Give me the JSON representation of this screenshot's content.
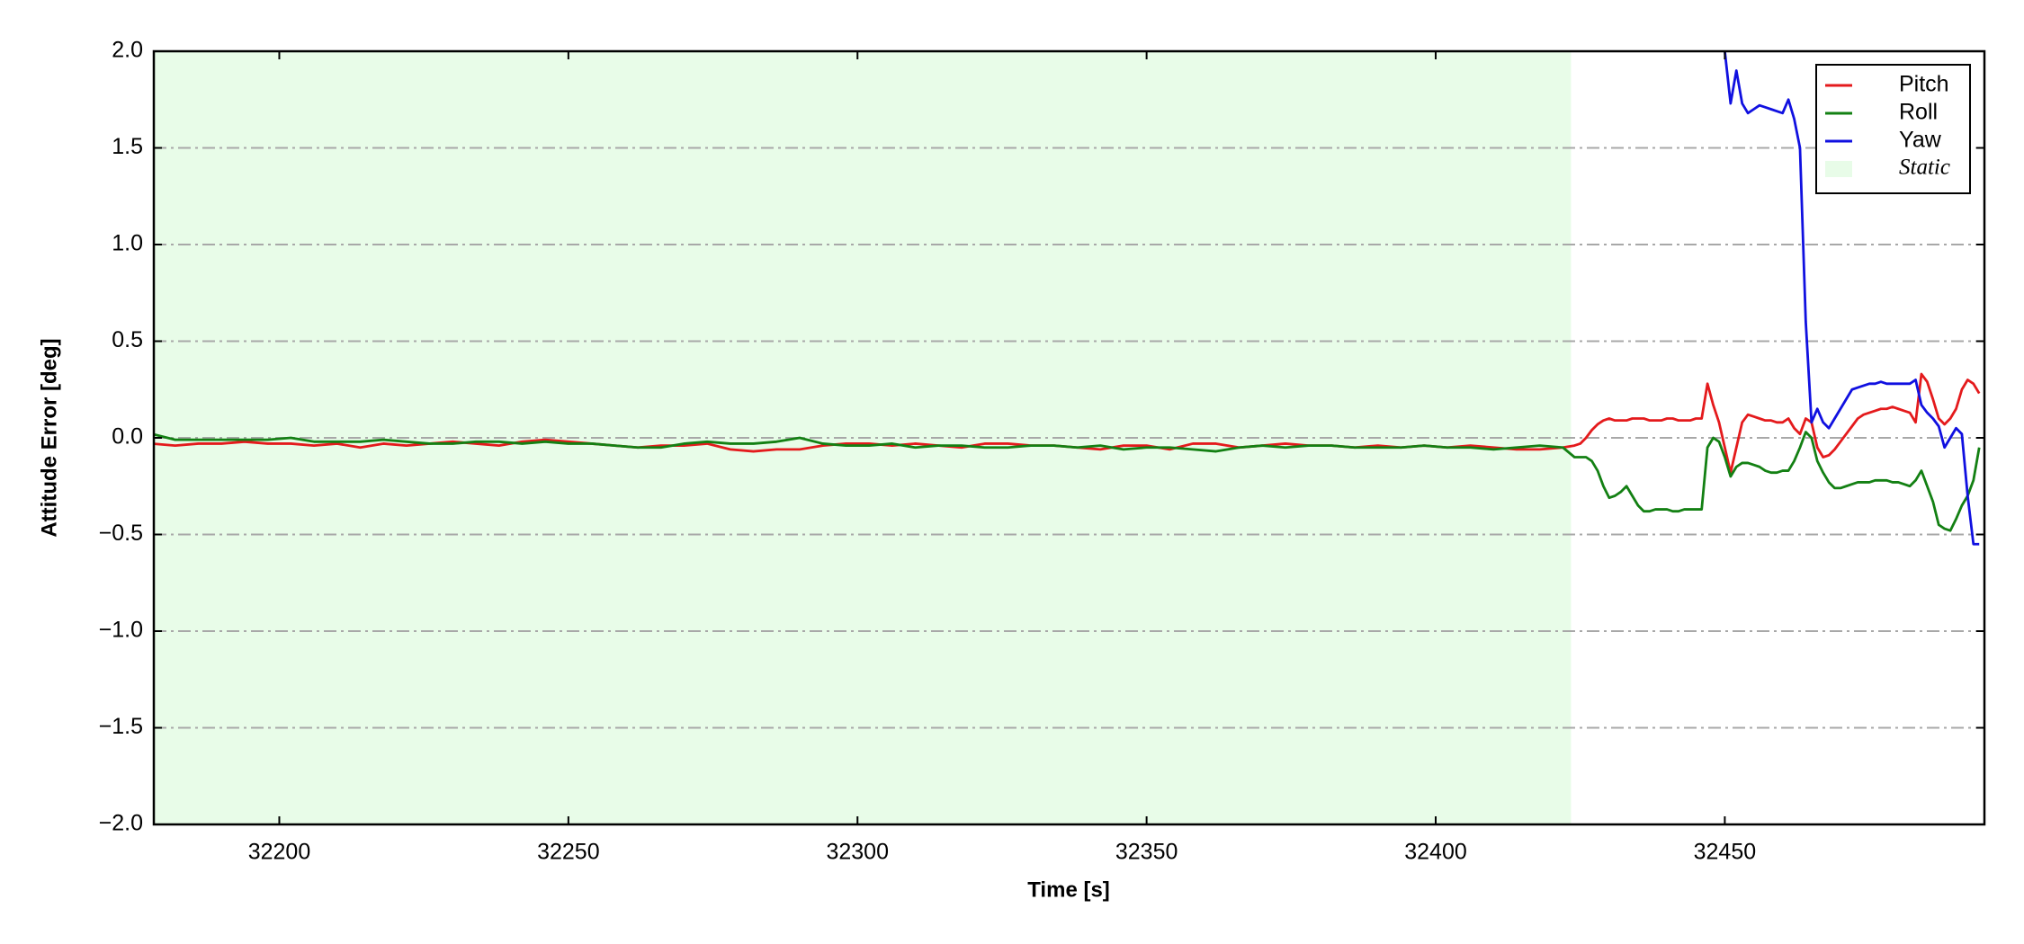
{
  "chart_data": {
    "type": "line",
    "xlabel": "Time [s]",
    "ylabel": "Attitude Error [deg]",
    "xlim": [
      32178.3,
      32494.9
    ],
    "ylim": [
      -2,
      2
    ],
    "xticks": [
      32200,
      32250,
      32300,
      32350,
      32400,
      32450
    ],
    "yticks": [
      {
        "value": -2,
        "label": "−2.0"
      },
      {
        "value": -1.5,
        "label": "−1.5"
      },
      {
        "value": -1,
        "label": "−1.0"
      },
      {
        "value": -0.5,
        "label": "−0.5"
      },
      {
        "value": 0,
        "label": "0.0"
      },
      {
        "value": 0.5,
        "label": "0.5"
      },
      {
        "value": 1,
        "label": "1.0"
      },
      {
        "value": 1.5,
        "label": "1.5"
      },
      {
        "value": 2,
        "label": "2.0"
      }
    ],
    "grid": "y",
    "legend": "upper right",
    "region": {
      "name": "Static",
      "color": "#e8fce8",
      "xlim": [
        32178.3,
        32423.4
      ]
    },
    "x": [
      32178,
      32182,
      32186,
      32190,
      32194,
      32198,
      32202,
      32206,
      32210,
      32214,
      32218,
      32222,
      32226,
      32230,
      32234,
      32238,
      32242,
      32246,
      32250,
      32254,
      32258,
      32262,
      32266,
      32270,
      32274,
      32278,
      32282,
      32286,
      32290,
      32294,
      32298,
      32302,
      32306,
      32310,
      32314,
      32318,
      32322,
      32326,
      32330,
      32334,
      32338,
      32342,
      32346,
      32350,
      32354,
      32358,
      32362,
      32366,
      32370,
      32374,
      32378,
      32382,
      32386,
      32390,
      32394,
      32398,
      32402,
      32406,
      32410,
      32414,
      32418,
      32422,
      32424,
      32425,
      32426,
      32427,
      32428,
      32429,
      32430,
      32431,
      32432,
      32433,
      32434,
      32435,
      32436,
      32437,
      32438,
      32439,
      32440,
      32441,
      32442,
      32443,
      32444,
      32445,
      32446,
      32447,
      32448,
      32449,
      32450,
      32451,
      32452,
      32453,
      32454,
      32455,
      32456,
      32457,
      32458,
      32459,
      32460,
      32461,
      32462,
      32463,
      32464,
      32465,
      32466,
      32467,
      32468,
      32469,
      32470,
      32471,
      32472,
      32473,
      32474,
      32475,
      32476,
      32477,
      32478,
      32479,
      32480,
      32481,
      32482,
      32483,
      32484,
      32485,
      32486,
      32487,
      32488,
      32489,
      32490,
      32491,
      32492,
      32493,
      32494
    ],
    "series": [
      {
        "name": "Pitch",
        "color": "#e41a1c",
        "values": [
          -0.03,
          -0.04,
          -0.03,
          -0.03,
          -0.02,
          -0.03,
          -0.03,
          -0.04,
          -0.03,
          -0.05,
          -0.03,
          -0.04,
          -0.03,
          -0.02,
          -0.03,
          -0.04,
          -0.02,
          -0.01,
          -0.02,
          -0.03,
          -0.04,
          -0.05,
          -0.04,
          -0.04,
          -0.03,
          -0.06,
          -0.07,
          -0.06,
          -0.06,
          -0.04,
          -0.03,
          -0.03,
          -0.04,
          -0.03,
          -0.04,
          -0.05,
          -0.03,
          -0.03,
          -0.04,
          -0.04,
          -0.05,
          -0.06,
          -0.04,
          -0.04,
          -0.06,
          -0.03,
          -0.03,
          -0.05,
          -0.04,
          -0.03,
          -0.04,
          -0.04,
          -0.05,
          -0.04,
          -0.05,
          -0.04,
          -0.05,
          -0.04,
          -0.05,
          -0.06,
          -0.06,
          -0.05,
          -0.04,
          -0.03,
          0.0,
          0.04,
          0.07,
          0.09,
          0.1,
          0.09,
          0.09,
          0.09,
          0.1,
          0.1,
          0.1,
          0.09,
          0.09,
          0.09,
          0.1,
          0.1,
          0.09,
          0.09,
          0.09,
          0.1,
          0.1,
          0.28,
          0.17,
          0.08,
          -0.05,
          -0.18,
          -0.05,
          0.08,
          0.12,
          0.11,
          0.1,
          0.09,
          0.09,
          0.08,
          0.08,
          0.1,
          0.05,
          0.02,
          0.1,
          0.08,
          -0.05,
          -0.1,
          -0.09,
          -0.06,
          -0.02,
          0.02,
          0.06,
          0.1,
          0.12,
          0.13,
          0.14,
          0.15,
          0.15,
          0.16,
          0.15,
          0.14,
          0.13,
          0.08,
          0.33,
          0.29,
          0.2,
          0.1,
          0.07,
          0.1,
          0.15,
          0.25,
          0.3,
          0.28,
          0.23
        ]
      },
      {
        "name": "Roll",
        "color": "#138013",
        "values": [
          0.02,
          -0.01,
          -0.01,
          -0.01,
          -0.01,
          -0.01,
          0.0,
          -0.02,
          -0.02,
          -0.02,
          -0.01,
          -0.02,
          -0.03,
          -0.03,
          -0.02,
          -0.02,
          -0.03,
          -0.02,
          -0.03,
          -0.03,
          -0.04,
          -0.05,
          -0.05,
          -0.03,
          -0.02,
          -0.03,
          -0.03,
          -0.02,
          0.0,
          -0.03,
          -0.04,
          -0.04,
          -0.03,
          -0.05,
          -0.04,
          -0.04,
          -0.05,
          -0.05,
          -0.04,
          -0.04,
          -0.05,
          -0.04,
          -0.06,
          -0.05,
          -0.05,
          -0.06,
          -0.07,
          -0.05,
          -0.04,
          -0.05,
          -0.04,
          -0.04,
          -0.05,
          -0.05,
          -0.05,
          -0.04,
          -0.05,
          -0.05,
          -0.06,
          -0.05,
          -0.04,
          -0.05,
          -0.1,
          -0.1,
          -0.1,
          -0.12,
          -0.17,
          -0.25,
          -0.31,
          -0.3,
          -0.28,
          -0.25,
          -0.3,
          -0.35,
          -0.38,
          -0.38,
          -0.37,
          -0.37,
          -0.37,
          -0.38,
          -0.38,
          -0.37,
          -0.37,
          -0.37,
          -0.37,
          -0.05,
          0.0,
          -0.02,
          -0.1,
          -0.2,
          -0.15,
          -0.13,
          -0.13,
          -0.14,
          -0.15,
          -0.17,
          -0.18,
          -0.18,
          -0.17,
          -0.17,
          -0.12,
          -0.05,
          0.03,
          0.0,
          -0.12,
          -0.18,
          -0.23,
          -0.26,
          -0.26,
          -0.25,
          -0.24,
          -0.23,
          -0.23,
          -0.23,
          -0.22,
          -0.22,
          -0.22,
          -0.23,
          -0.23,
          -0.24,
          -0.25,
          -0.22,
          -0.17,
          -0.25,
          -0.33,
          -0.45,
          -0.47,
          -0.48,
          -0.42,
          -0.35,
          -0.3,
          -0.22,
          -0.05
        ]
      },
      {
        "name": "Yaw",
        "color": "#1010e0",
        "values": [
          null,
          null,
          null,
          null,
          null,
          null,
          null,
          null,
          null,
          null,
          null,
          null,
          null,
          null,
          null,
          null,
          null,
          null,
          null,
          null,
          null,
          null,
          null,
          null,
          null,
          null,
          null,
          null,
          null,
          null,
          null,
          null,
          null,
          null,
          null,
          null,
          null,
          null,
          null,
          null,
          null,
          null,
          null,
          null,
          null,
          null,
          null,
          null,
          null,
          null,
          null,
          null,
          null,
          null,
          null,
          null,
          null,
          null,
          null,
          null,
          null,
          null,
          null,
          null,
          null,
          null,
          null,
          null,
          null,
          null,
          null,
          null,
          null,
          null,
          null,
          null,
          null,
          null,
          null,
          null,
          null,
          null,
          null,
          null,
          null,
          null,
          null,
          null,
          2.0,
          1.73,
          1.9,
          1.73,
          1.68,
          1.7,
          1.72,
          1.71,
          1.7,
          1.69,
          1.68,
          1.75,
          1.65,
          1.5,
          0.6,
          0.08,
          0.15,
          0.08,
          0.05,
          0.1,
          0.15,
          0.2,
          0.25,
          0.26,
          0.27,
          0.28,
          0.28,
          0.29,
          0.28,
          0.28,
          0.28,
          0.28,
          0.28,
          0.3,
          0.17,
          0.13,
          0.1,
          0.06,
          -0.05,
          0.0,
          0.05,
          0.02,
          -0.3,
          -0.55,
          -0.55
        ]
      }
    ]
  }
}
